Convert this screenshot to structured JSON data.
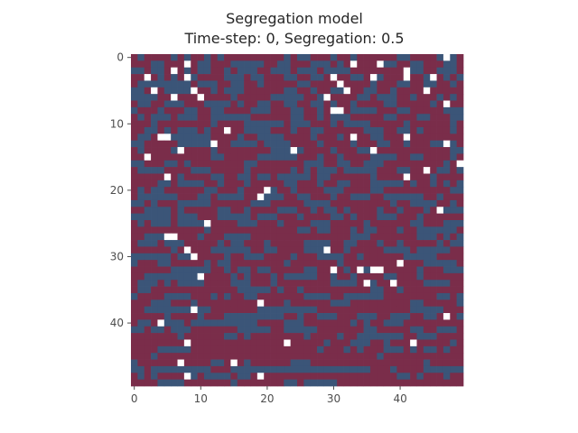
{
  "chart_data": {
    "type": "heatmap",
    "title": "Segregation model",
    "subtitle": "Time-step: 0, Segregation: 0.5",
    "rows": 50,
    "cols": 50,
    "xticks": [
      0,
      10,
      20,
      30,
      40
    ],
    "yticks": [
      0,
      10,
      20,
      30,
      40
    ],
    "legend": "none",
    "grid": false,
    "state_colors": {
      "empty": "#ffffff",
      "group_a": "#3b5578",
      "group_b": "#7a2d4a"
    },
    "encoding": ". = empty, A = group_a (blue), B = group_b (red)",
    "cells": [
      "BABBBBABABBABABBBBBBBBBABAABBBABBABBBBBBAABBBBA.ABB",
      "BBBAABBB.BAABBBAAAAABBAABBBAAABAB.BBB.AABBAABBBAAB",
      "AABAAB.BABAABBABAAABBAAABAAABAAAABBBBBBBB.AABBAAAB",
      "BB.BABAB.ABBBBAAABAABBBAABBAAB.BBAAB.ABBB.BBA.BABA",
      "BAAAAAAAABAAABBAABBABBBBBAABBBB.BBBBABBBAABBAABBAB",
      "AAB.BAAAA.BBABAAABBBBBBAABBABBAA.BBAABBABBBB.BBBBB",
      "AAAABB.BBB.BBBBABBBBBAAAAABBA.BBBBAABAAABBABBBABAB",
      "BAABBAAABBBAAAABABBAABBAABBAABABBABBBBAABBBBBAB.BB",
      "ABBBABBBAABBAABBBBAAABBBAABBAB..BAAAABBBAABBBBBAAA",
      "BABAAABAAABBAAAAAABBBBBBAABBABAAABBBBBAABBBAABBBAA",
      "BBBABBBBBBBBABBBBAAAAAABAAABBBABAAAABBBBBABBBBBBAB",
      "BBAABABAAABABB.BBAAAABBBABBAABBBBBBAAABBAABABBBBAB",
      "BAAB..AAAAAABBBBABBAAAABBBBABBBAB.BBAABBB.BBBBBBBB",
      "AABBBBBAAAAA.BBAAAABAAAABBBBABBBBABBBAABBABBBAA.AB",
      "BABBBBA.BBBBABBBBBBBBAAA.ABBBBABBBAA.BBBBBBBBBBBAA",
      "BB.BBBBBBBBBAABBBBBAAAAAABBBABBABBBBAAAABBAABBBBAB",
      "AABBBAABABBBBBBBBAABBBBBBBAAABBAABBAAABBBBBBBBBAB.",
      "BAAAABBBBAAABBBBBABBBBBBABABAAABAAAAABBBAABB.BAABA",
      "BBBBB.BABBBBAABBAABAABAAAAABAABBBBBBABBBB.BBBABBBB",
      "BBBBAABAAAABBABBBABBBBBAABBBABBAABBBAAAAABABBABABA",
      "BABAABBBBBBAABBBABBB.ABBABBBBAAABBBBAABBBBBBBBBBAA",
      "BAAAAAABBBAABAAAABB.AAABBAABBBABBAAABBAAAAAABBABBB",
      "AABABBBAAAAABBBBBBAAABBBBBAAAABBBBBBBBBABBAAAABBAB",
      "BBAAAABABBBBBAABBABBBBAAABBABAABABBBBABBABBBAB.AAA",
      "AAAAAABAAABBBAAAAABAAABBBABBBBAABABBBAAABBBABBBBBB",
      "BABAAABAAAA.BBBBAAABBBABBBBAAABBBBBABBBBBBAABBBAAA",
      "BBBBBBBBBBBABBBBBBBBBBBBBAABAABBBABAABBBABBAAAAAAB",
      "BBAAA..BBBABBBAAAABBBBBBBBBBBBBBBAAABBBBBBBAAABABA",
      "BAAABAAABBBBBABAABBBABBBBBAAAABBAABBBABBABBBBBABAA",
      "BBBBBBAB.BBBAAAAAABBAABBBBAAA.BBABBBBBAAAABAAAAABB",
      "AAAAAABAA.BBBBABBAAABBBBABBBAAAABBABBBBBBAAAAABBBB",
      "ABBBAABBBBBABAABBBBBBBBABBBBBBBABBBBBBBB.BBBAAAAAB",
      "BBBBBBAAAAAABBABAABAABBBBBAABB.BAB.A..BBBBBABBBAAA",
      "BBAAAAAAAA.BBBBABABBBABAAAAABBABBABBBBAABBBABBBBBB",
      "BAAABABAAAABBBBAAABBBABBBBBBBBAAAAB.ABB.BBBBAAAABB",
      "BAABBBBBBBBBBBBBAAAAABABBABBBBBBBBBBAABBABBBBBBBBB",
      "ABBBBAAAABBBABABBAABBBBBBBAAAABBAAAAAABBBBBBBBAABA",
      "BBBAAABBBABBBBBBBBB.BBBABBBBBBAAABBBBBBBBBAABBBBBA",
      "BBAAAAAAA.AABBBBBBBAAAAAAAAABBBBBBBBBBBBBBAAAAABBB",
      "BBBBBABBBBABBBAAAAAAAAABBABBAAABBBAAABBAAABBAAB.BA",
      "BAAB.AAABAAAAAAAAAABBBBAAABBBBBBBABABBAAABBBBBBBBB",
      "AABAABAAABBBBBBBAAAAABBAAAAABBBBBBBAABBBBBAABBAAAB",
      "BBBBBBBABBBBBBAABABBBBBBBBABBBBABBAAAAAAABBAAABBBB",
      "BBBBBBBB.BBBBBBBBBBBBBB.BBBBBABBBAAABBABBB.BBBBBAB",
      "BBBBAAAAABBBBBBBBBBBBBBBBBBBABBBABABBBAAABABAABABB",
      "BBBABBBBBBBBBBBBBBBBBBBBBBBBBBBBBBBBBABBBBBBBBBBBB",
      "ABBBBBB.BBBBAAB.BABBBBBBAAABBBBBBBBBBBBBBBBBABBBBB",
      "AABAAAAAAAAABBBAAAAAAAAAAAAAAAAAAAAABBBABBBBAAAAAA",
      "BABABBBB.ABAAAABAAB.BBBBBBBBBBBBBBBBBBBBAABABBBABB",
      "BBBBAAAABBBBBBBABBBBBBBAABAAAAABBBBBBBBBBBBBBBBBBB"
    ]
  }
}
